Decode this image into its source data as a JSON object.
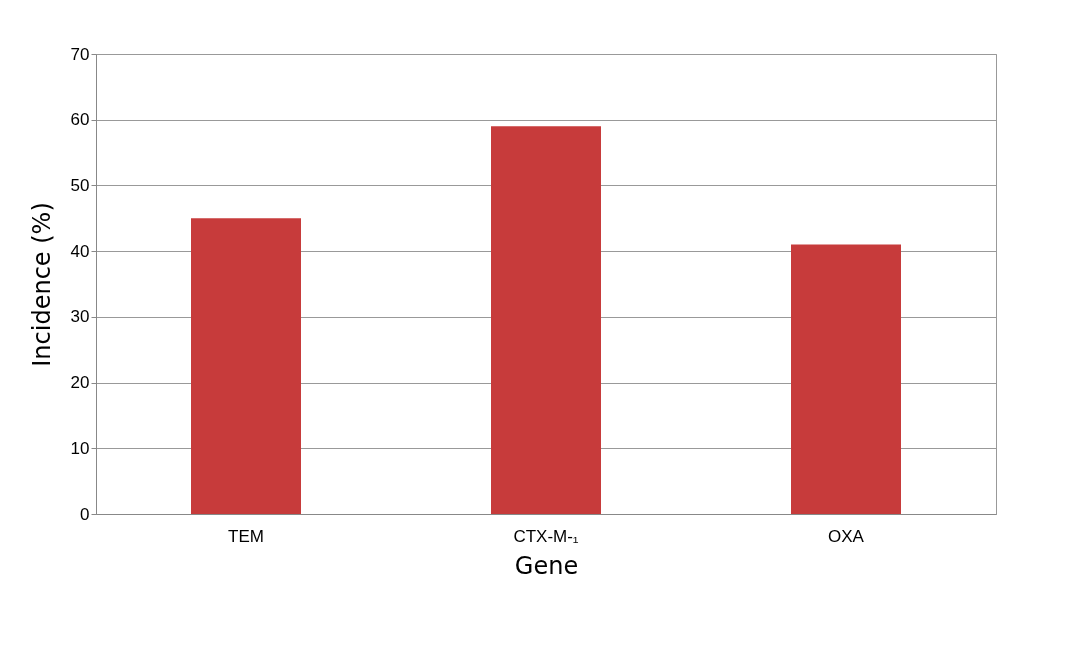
{
  "chart_data": {
    "type": "bar",
    "xlabel": "Gene",
    "ylabel": "Incidence (%)",
    "categories": [
      "TEM",
      "CTX-M-₁",
      "OXA"
    ],
    "values": [
      45,
      59,
      41
    ],
    "color": "#c73b3b",
    "ylim": [
      0,
      70
    ],
    "yticks": [
      0,
      10,
      20,
      30,
      40,
      50,
      60,
      70
    ],
    "grid": "y"
  }
}
